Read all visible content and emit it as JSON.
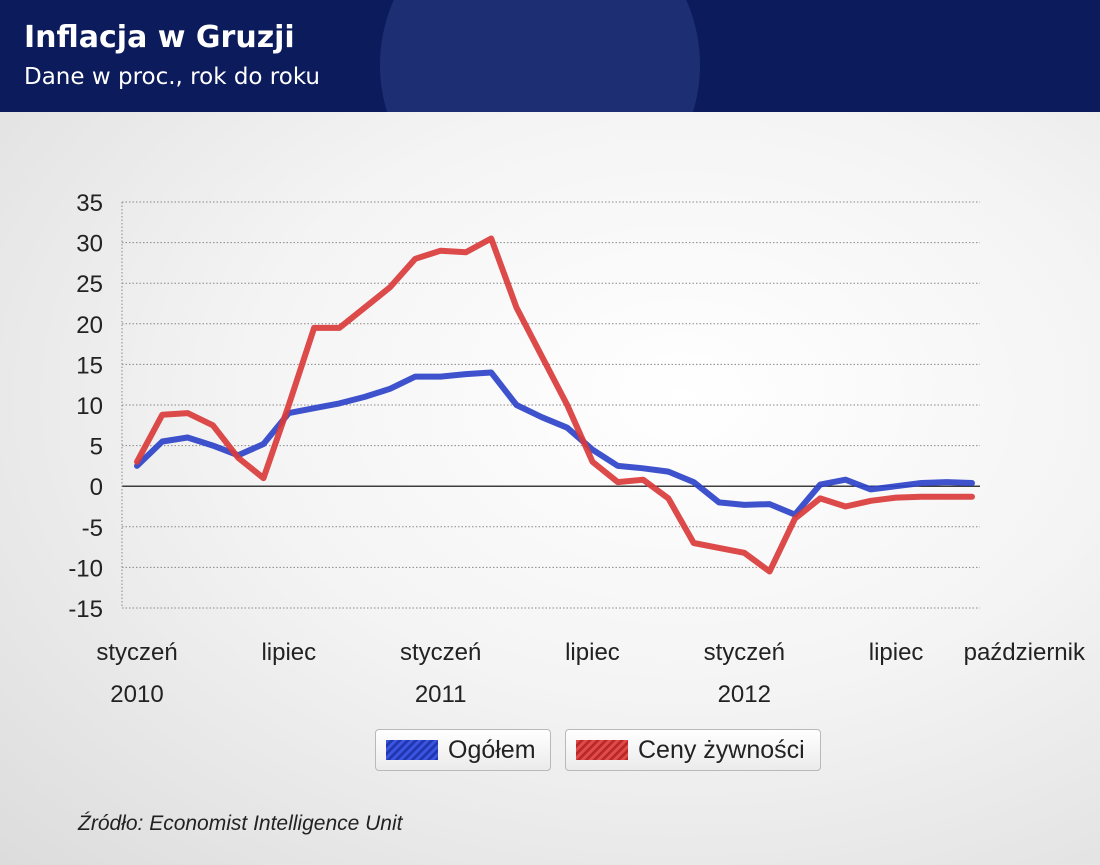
{
  "header": {
    "title": "Inflacja w Gruzji",
    "subtitle": "Dane w proc., rok do roku"
  },
  "source": "Źródło: Economist Intelligence Unit",
  "legend": [
    {
      "label": "Ogółem",
      "color": "#2c43c8"
    },
    {
      "label": "Ceny żywności",
      "color": "#d93b3b"
    }
  ],
  "colors": {
    "header_bg": "#0b1b5c",
    "zero_line": "#000000",
    "grid": "#888888"
  },
  "chart_data": {
    "type": "line",
    "title": "Inflacja w Gruzji",
    "subtitle": "Dane w proc., rok do roku",
    "ylim": [
      -15,
      35
    ],
    "yticks": [
      35,
      30,
      25,
      20,
      15,
      10,
      5,
      0,
      -5,
      -10,
      -15
    ],
    "grid": true,
    "legend_position": "bottom",
    "x": [
      "2010-01",
      "2010-02",
      "2010-03",
      "2010-04",
      "2010-05",
      "2010-06",
      "2010-07",
      "2010-08",
      "2010-09",
      "2010-10",
      "2010-11",
      "2010-12",
      "2011-01",
      "2011-02",
      "2011-03",
      "2011-04",
      "2011-05",
      "2011-06",
      "2011-07",
      "2011-08",
      "2011-09",
      "2011-10",
      "2011-11",
      "2011-12",
      "2012-01",
      "2012-02",
      "2012-03",
      "2012-04",
      "2012-05",
      "2012-06",
      "2012-07",
      "2012-08",
      "2012-09",
      "2012-10"
    ],
    "xtick_labels": [
      {
        "x": "2010-01",
        "lines": [
          "styczeń",
          "2010"
        ]
      },
      {
        "x": "2010-07",
        "lines": [
          "lipiec"
        ]
      },
      {
        "x": "2011-01",
        "lines": [
          "styczeń",
          "2011"
        ]
      },
      {
        "x": "2011-07",
        "lines": [
          "lipiec"
        ]
      },
      {
        "x": "2012-01",
        "lines": [
          "styczeń",
          "2012"
        ]
      },
      {
        "x": "2012-07",
        "lines": [
          "lipiec"
        ]
      },
      {
        "x": "2012-10",
        "lines": [
          "październik"
        ]
      }
    ],
    "series": [
      {
        "name": "Ogółem",
        "color": "#2c43c8",
        "values": [
          2.5,
          5.5,
          6.0,
          5.0,
          3.8,
          5.2,
          9.0,
          9.6,
          10.2,
          11.0,
          12.0,
          13.5,
          13.5,
          13.8,
          14.0,
          10.0,
          8.5,
          7.2,
          4.5,
          2.5,
          2.2,
          1.8,
          0.5,
          -2.0,
          -2.3,
          -2.2,
          -3.5,
          0.2,
          0.8,
          -0.4,
          0.0,
          0.4,
          0.5,
          0.4
        ]
      },
      {
        "name": "Ceny żywności",
        "color": "#d93b3b",
        "values": [
          3.0,
          8.8,
          9.0,
          7.5,
          3.5,
          1.0,
          10.0,
          19.5,
          19.5,
          22.0,
          24.5,
          28.0,
          29.0,
          28.8,
          30.5,
          22.0,
          16.0,
          10.0,
          3.0,
          0.5,
          0.8,
          -1.5,
          -7.0,
          -7.6,
          -8.2,
          -10.5,
          -4.0,
          -1.5,
          -2.5,
          -1.8,
          -1.4,
          -1.3,
          -1.3,
          -1.3
        ]
      }
    ]
  }
}
